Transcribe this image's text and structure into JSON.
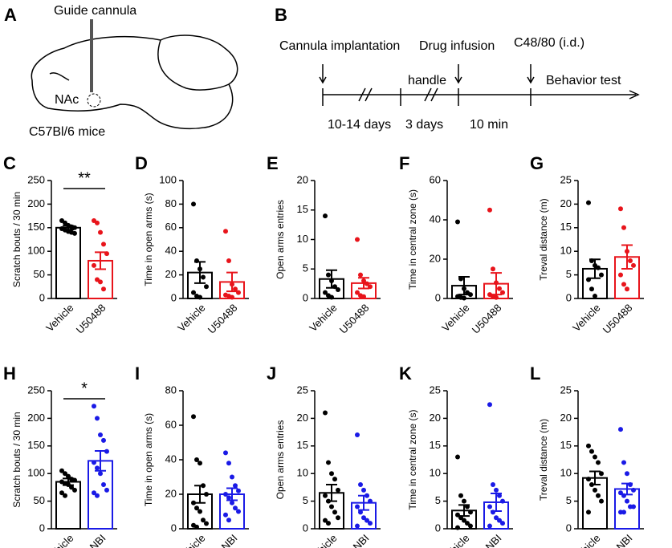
{
  "panel_a": {
    "letter": "A",
    "cannula": "Guide cannula",
    "region": "NAc",
    "strain": "C57Bl/6 mice"
  },
  "panel_b": {
    "letter": "B",
    "events": [
      "Cannula implantation",
      "Drug infusion",
      "C48/80 (i.d.)"
    ],
    "handle": "handle",
    "test": "Behavior test",
    "intervals": [
      "10-14 days",
      "3 days",
      "10 min"
    ]
  },
  "chart_data": [
    {
      "type": "bar",
      "panel": "C",
      "ylabel": "Scratch bouts / 30 min",
      "categories": [
        "Vehicle",
        "U50488"
      ],
      "colors": [
        "#000000",
        "#e8141b"
      ],
      "values": [
        150,
        80
      ],
      "errors": [
        4,
        18
      ],
      "points": [
        [
          165,
          160,
          155,
          152,
          150,
          148,
          145,
          142,
          140,
          138
        ],
        [
          165,
          160,
          140,
          115,
          95,
          70,
          40,
          35,
          20
        ]
      ],
      "ylim": [
        0,
        250
      ],
      "yticks": [
        0,
        50,
        100,
        150,
        200,
        250
      ],
      "significance": "**"
    },
    {
      "type": "bar",
      "panel": "D",
      "ylabel": "Time in open arms (s)",
      "categories": [
        "Vehicle",
        "U50488"
      ],
      "colors": [
        "#000000",
        "#e8141b"
      ],
      "values": [
        22,
        14
      ],
      "errors": [
        9,
        8
      ],
      "points": [
        [
          80,
          32,
          25,
          18,
          10,
          5,
          2,
          1
        ],
        [
          57,
          32,
          12,
          8,
          5,
          3,
          2,
          1
        ]
      ],
      "ylim": [
        0,
        100
      ],
      "yticks": [
        0,
        20,
        40,
        60,
        80,
        100
      ]
    },
    {
      "type": "bar",
      "panel": "E",
      "ylabel": "Open arms entries",
      "categories": [
        "Vehicle",
        "U50488"
      ],
      "colors": [
        "#000000",
        "#e8141b"
      ],
      "values": [
        3.3,
        2.6
      ],
      "errors": [
        1.5,
        0.9
      ],
      "points": [
        [
          14,
          4,
          3,
          2,
          1.5,
          1,
          0.5,
          0.2
        ],
        [
          10,
          4,
          3,
          2.5,
          2,
          1,
          0.5,
          0.3
        ]
      ],
      "ylim": [
        0,
        20
      ],
      "yticks": [
        0,
        5,
        10,
        15,
        20
      ]
    },
    {
      "type": "bar",
      "panel": "F",
      "ylabel": "Time in central zone (s)",
      "categories": [
        "Vehicle",
        "U50488"
      ],
      "colors": [
        "#000000",
        "#e8141b"
      ],
      "values": [
        6.5,
        7.5
      ],
      "errors": [
        4.5,
        5.5
      ],
      "points": [
        [
          39,
          10,
          5,
          3,
          2,
          1,
          0.5,
          0.2
        ],
        [
          45,
          15,
          8,
          5,
          3,
          2,
          1,
          0.5
        ]
      ],
      "ylim": [
        0,
        60
      ],
      "yticks": [
        0,
        20,
        40,
        60
      ]
    },
    {
      "type": "bar",
      "panel": "G",
      "ylabel": "Treval distance (m)",
      "categories": [
        "Vehicle",
        "U50488"
      ],
      "colors": [
        "#000000",
        "#e8141b"
      ],
      "values": [
        6.3,
        8.8
      ],
      "errors": [
        2,
        2.5
      ],
      "points": [
        [
          20.3,
          8,
          7,
          6.5,
          5,
          4,
          2,
          0.5
        ],
        [
          19,
          15,
          10,
          8,
          7,
          5,
          3,
          2
        ]
      ],
      "ylim": [
        0,
        25
      ],
      "yticks": [
        0,
        5,
        10,
        15,
        20,
        25
      ]
    },
    {
      "type": "bar",
      "panel": "H",
      "ylabel": "Scratch bouts / 30 min",
      "categories": [
        "Vehicle",
        "nor-NBI"
      ],
      "colors": [
        "#000000",
        "#1a1ae6"
      ],
      "values": [
        85,
        123
      ],
      "errors": [
        6,
        18
      ],
      "points": [
        [
          105,
          100,
          95,
          90,
          88,
          85,
          82,
          80,
          75,
          70,
          65,
          60
        ],
        [
          222,
          200,
          170,
          160,
          140,
          120,
          110,
          100,
          80,
          70,
          65,
          60
        ]
      ],
      "ylim": [
        0,
        250
      ],
      "yticks": [
        0,
        50,
        100,
        150,
        200,
        250
      ],
      "significance": "*"
    },
    {
      "type": "bar",
      "panel": "I",
      "ylabel": "Time in open arms (s)",
      "categories": [
        "Vehicle",
        "nor-NBI"
      ],
      "colors": [
        "#000000",
        "#1a1ae6"
      ],
      "values": [
        20,
        20
      ],
      "errors": [
        5,
        3.5
      ],
      "points": [
        [
          65,
          40,
          38,
          25,
          20,
          15,
          12,
          10,
          5,
          3,
          2,
          1
        ],
        [
          44,
          38,
          30,
          25,
          22,
          20,
          18,
          15,
          12,
          10,
          8,
          5
        ]
      ],
      "ylim": [
        0,
        80
      ],
      "yticks": [
        0,
        20,
        40,
        60,
        80
      ]
    },
    {
      "type": "bar",
      "panel": "J",
      "ylabel": "Open arms entries",
      "categories": [
        "Vehicle",
        "nor-NBI"
      ],
      "colors": [
        "#000000",
        "#1a1ae6"
      ],
      "values": [
        6.5,
        4.7
      ],
      "errors": [
        1.5,
        1.3
      ],
      "points": [
        [
          21,
          12,
          10,
          9,
          7,
          6,
          5,
          4,
          3,
          2,
          1.5,
          1
        ],
        [
          17,
          8,
          7,
          6,
          5,
          4,
          3,
          2,
          1.5,
          1,
          0.5
        ]
      ],
      "ylim": [
        0,
        25
      ],
      "yticks": [
        0,
        5,
        10,
        15,
        20,
        25
      ]
    },
    {
      "type": "bar",
      "panel": "K",
      "ylabel": "Time in central zone (s)",
      "categories": [
        "Vehicle",
        "nor-NBI"
      ],
      "colors": [
        "#000000",
        "#1a1ae6"
      ],
      "values": [
        3.3,
        4.8
      ],
      "errors": [
        1,
        1.6
      ],
      "points": [
        [
          13,
          6,
          5,
          4,
          3,
          2.5,
          2,
          1.5,
          1,
          0.5,
          0.2
        ],
        [
          22.5,
          8,
          7,
          6,
          5,
          4,
          3,
          2,
          1.5,
          1,
          0.5
        ]
      ],
      "ylim": [
        0,
        25
      ],
      "yticks": [
        0,
        5,
        10,
        15,
        20,
        25
      ]
    },
    {
      "type": "bar",
      "panel": "L",
      "ylabel": "Treval distance (m)",
      "categories": [
        "Vehicle",
        "nor-NBI"
      ],
      "colors": [
        "#000000",
        "#1a1ae6"
      ],
      "values": [
        9.2,
        7.2
      ],
      "errors": [
        1.2,
        1
      ],
      "points": [
        [
          15,
          14,
          13,
          12,
          10,
          9,
          8,
          7,
          6,
          5,
          3
        ],
        [
          18,
          12,
          10,
          8,
          7,
          6.5,
          6,
          5,
          4,
          4,
          3,
          3
        ]
      ],
      "ylim": [
        0,
        25
      ],
      "yticks": [
        0,
        5,
        10,
        15,
        20,
        25
      ]
    }
  ]
}
